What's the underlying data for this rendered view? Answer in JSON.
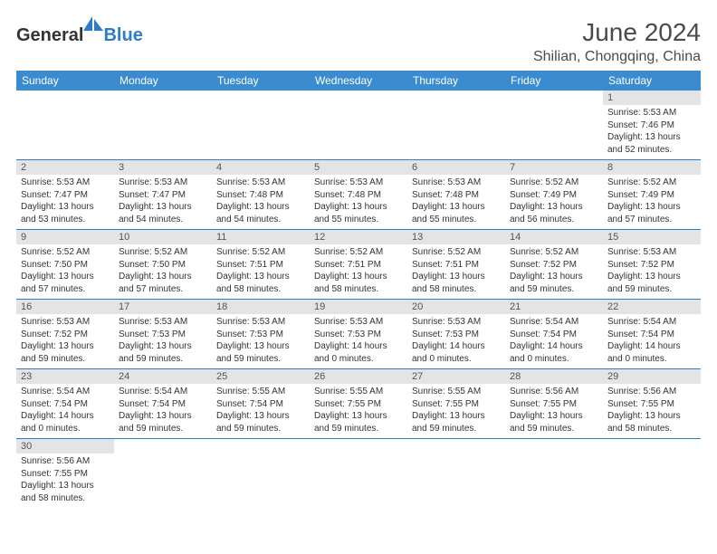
{
  "logo": {
    "text_general": "General",
    "text_blue": "Blue",
    "shape_color": "#2e7cc4"
  },
  "header": {
    "month_title": "June 2024",
    "location": "Shilian, Chongqing, China"
  },
  "calendar": {
    "header_bg": "#3a8bd0",
    "header_text_color": "#ffffff",
    "border_color": "#2e7cc4",
    "daynum_bg": "#e4e4e4",
    "days_of_week": [
      "Sunday",
      "Monday",
      "Tuesday",
      "Wednesday",
      "Thursday",
      "Friday",
      "Saturday"
    ],
    "weeks": [
      [
        null,
        null,
        null,
        null,
        null,
        null,
        {
          "n": "1",
          "sr": "5:53 AM",
          "ss": "7:46 PM",
          "dl": "13 hours and 52 minutes."
        }
      ],
      [
        {
          "n": "2",
          "sr": "5:53 AM",
          "ss": "7:47 PM",
          "dl": "13 hours and 53 minutes."
        },
        {
          "n": "3",
          "sr": "5:53 AM",
          "ss": "7:47 PM",
          "dl": "13 hours and 54 minutes."
        },
        {
          "n": "4",
          "sr": "5:53 AM",
          "ss": "7:48 PM",
          "dl": "13 hours and 54 minutes."
        },
        {
          "n": "5",
          "sr": "5:53 AM",
          "ss": "7:48 PM",
          "dl": "13 hours and 55 minutes."
        },
        {
          "n": "6",
          "sr": "5:53 AM",
          "ss": "7:48 PM",
          "dl": "13 hours and 55 minutes."
        },
        {
          "n": "7",
          "sr": "5:52 AM",
          "ss": "7:49 PM",
          "dl": "13 hours and 56 minutes."
        },
        {
          "n": "8",
          "sr": "5:52 AM",
          "ss": "7:49 PM",
          "dl": "13 hours and 57 minutes."
        }
      ],
      [
        {
          "n": "9",
          "sr": "5:52 AM",
          "ss": "7:50 PM",
          "dl": "13 hours and 57 minutes."
        },
        {
          "n": "10",
          "sr": "5:52 AM",
          "ss": "7:50 PM",
          "dl": "13 hours and 57 minutes."
        },
        {
          "n": "11",
          "sr": "5:52 AM",
          "ss": "7:51 PM",
          "dl": "13 hours and 58 minutes."
        },
        {
          "n": "12",
          "sr": "5:52 AM",
          "ss": "7:51 PM",
          "dl": "13 hours and 58 minutes."
        },
        {
          "n": "13",
          "sr": "5:52 AM",
          "ss": "7:51 PM",
          "dl": "13 hours and 58 minutes."
        },
        {
          "n": "14",
          "sr": "5:52 AM",
          "ss": "7:52 PM",
          "dl": "13 hours and 59 minutes."
        },
        {
          "n": "15",
          "sr": "5:53 AM",
          "ss": "7:52 PM",
          "dl": "13 hours and 59 minutes."
        }
      ],
      [
        {
          "n": "16",
          "sr": "5:53 AM",
          "ss": "7:52 PM",
          "dl": "13 hours and 59 minutes."
        },
        {
          "n": "17",
          "sr": "5:53 AM",
          "ss": "7:53 PM",
          "dl": "13 hours and 59 minutes."
        },
        {
          "n": "18",
          "sr": "5:53 AM",
          "ss": "7:53 PM",
          "dl": "13 hours and 59 minutes."
        },
        {
          "n": "19",
          "sr": "5:53 AM",
          "ss": "7:53 PM",
          "dl": "14 hours and 0 minutes."
        },
        {
          "n": "20",
          "sr": "5:53 AM",
          "ss": "7:53 PM",
          "dl": "14 hours and 0 minutes."
        },
        {
          "n": "21",
          "sr": "5:54 AM",
          "ss": "7:54 PM",
          "dl": "14 hours and 0 minutes."
        },
        {
          "n": "22",
          "sr": "5:54 AM",
          "ss": "7:54 PM",
          "dl": "14 hours and 0 minutes."
        }
      ],
      [
        {
          "n": "23",
          "sr": "5:54 AM",
          "ss": "7:54 PM",
          "dl": "14 hours and 0 minutes."
        },
        {
          "n": "24",
          "sr": "5:54 AM",
          "ss": "7:54 PM",
          "dl": "13 hours and 59 minutes."
        },
        {
          "n": "25",
          "sr": "5:55 AM",
          "ss": "7:54 PM",
          "dl": "13 hours and 59 minutes."
        },
        {
          "n": "26",
          "sr": "5:55 AM",
          "ss": "7:55 PM",
          "dl": "13 hours and 59 minutes."
        },
        {
          "n": "27",
          "sr": "5:55 AM",
          "ss": "7:55 PM",
          "dl": "13 hours and 59 minutes."
        },
        {
          "n": "28",
          "sr": "5:56 AM",
          "ss": "7:55 PM",
          "dl": "13 hours and 59 minutes."
        },
        {
          "n": "29",
          "sr": "5:56 AM",
          "ss": "7:55 PM",
          "dl": "13 hours and 58 minutes."
        }
      ],
      [
        {
          "n": "30",
          "sr": "5:56 AM",
          "ss": "7:55 PM",
          "dl": "13 hours and 58 minutes."
        },
        null,
        null,
        null,
        null,
        null,
        null
      ]
    ],
    "labels": {
      "sunrise": "Sunrise:",
      "sunset": "Sunset:",
      "daylight": "Daylight:"
    }
  }
}
